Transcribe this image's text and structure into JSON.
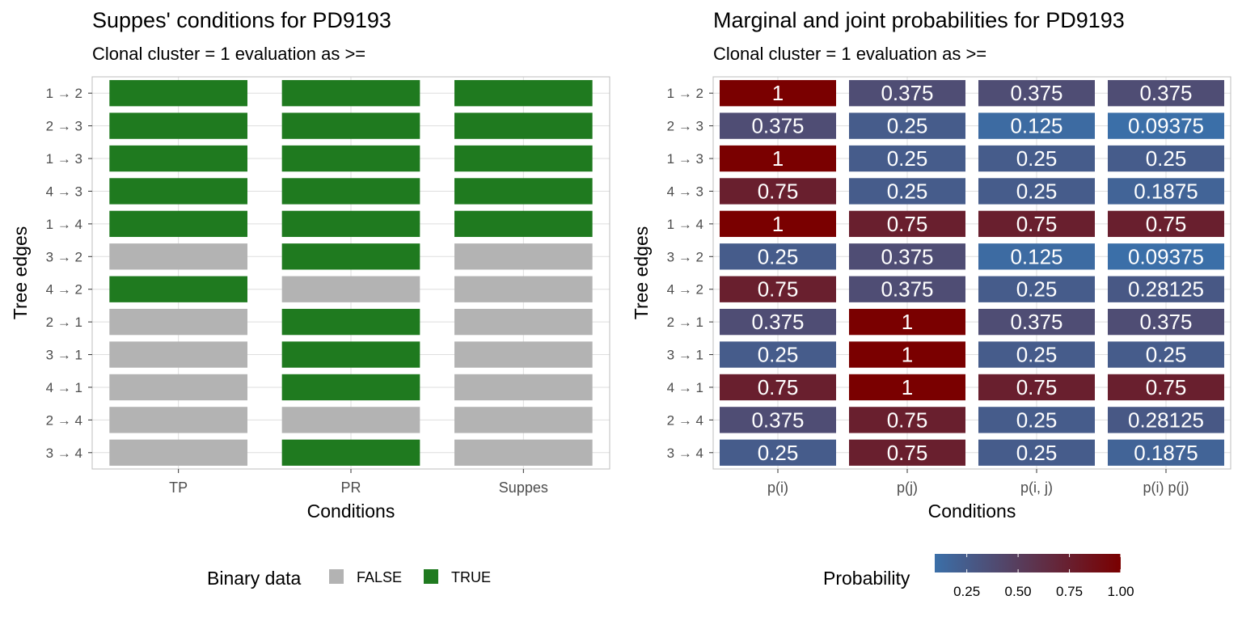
{
  "chart_data": [
    {
      "type": "heatmap",
      "title": "Suppes' conditions for PD9193",
      "subtitle": "Clonal cluster =  1 evaluation as >=",
      "xlabel": "Conditions",
      "ylabel": "Tree edges",
      "x_categories": [
        "TP",
        "PR",
        "Suppes"
      ],
      "y_categories": [
        "1 → 2",
        "2 → 3",
        "1 → 3",
        "4 → 3",
        "1 → 4",
        "3 → 2",
        "4 → 2",
        "2 → 1",
        "3 → 1",
        "4 → 1",
        "2 → 4",
        "3 → 4"
      ],
      "values": [
        [
          true,
          true,
          true
        ],
        [
          true,
          true,
          true
        ],
        [
          true,
          true,
          true
        ],
        [
          true,
          true,
          true
        ],
        [
          true,
          true,
          true
        ],
        [
          false,
          true,
          false
        ],
        [
          true,
          false,
          false
        ],
        [
          false,
          true,
          false
        ],
        [
          false,
          true,
          false
        ],
        [
          false,
          true,
          false
        ],
        [
          false,
          false,
          false
        ],
        [
          false,
          true,
          false
        ]
      ],
      "legend": {
        "title": "Binary data",
        "position": "bottom",
        "entries": [
          {
            "label": "FALSE",
            "color": "#b3b3b3"
          },
          {
            "label": "TRUE",
            "color": "#1f7a1f"
          }
        ]
      },
      "grid": true
    },
    {
      "type": "heatmap",
      "title": "Marginal and joint probabilities for PD9193",
      "subtitle": "Clonal cluster =  1 evaluation as >=",
      "xlabel": "Conditions",
      "ylabel": "Tree edges",
      "x_categories": [
        "p(i)",
        "p(j)",
        "p(i, j)",
        "p(i) p(j)"
      ],
      "y_categories": [
        "1 → 2",
        "2 → 3",
        "1 → 3",
        "4 → 3",
        "1 → 4",
        "3 → 2",
        "4 → 2",
        "2 → 1",
        "3 → 1",
        "4 → 1",
        "2 → 4",
        "3 → 4"
      ],
      "values": [
        [
          1,
          0.375,
          0.375,
          0.375
        ],
        [
          0.375,
          0.25,
          0.125,
          0.09375
        ],
        [
          1,
          0.25,
          0.25,
          0.25
        ],
        [
          0.75,
          0.25,
          0.25,
          0.1875
        ],
        [
          1,
          0.75,
          0.75,
          0.75
        ],
        [
          0.25,
          0.375,
          0.125,
          0.09375
        ],
        [
          0.75,
          0.375,
          0.25,
          0.28125
        ],
        [
          0.375,
          1,
          0.375,
          0.375
        ],
        [
          0.25,
          1,
          0.25,
          0.25
        ],
        [
          0.75,
          1,
          0.75,
          0.75
        ],
        [
          0.375,
          0.75,
          0.25,
          0.28125
        ],
        [
          0.25,
          0.75,
          0.25,
          0.1875
        ]
      ],
      "labels": [
        [
          "1",
          "0.375",
          "0.375",
          "0.375"
        ],
        [
          "0.375",
          "0.25",
          "0.125",
          "0.09375"
        ],
        [
          "1",
          "0.25",
          "0.25",
          "0.25"
        ],
        [
          "0.75",
          "0.25",
          "0.25",
          "0.1875"
        ],
        [
          "1",
          "0.75",
          "0.75",
          "0.75"
        ],
        [
          "0.25",
          "0.375",
          "0.125",
          "0.09375"
        ],
        [
          "0.75",
          "0.375",
          "0.25",
          "0.28125"
        ],
        [
          "0.375",
          "1",
          "0.375",
          "0.375"
        ],
        [
          "0.25",
          "1",
          "0.25",
          "0.25"
        ],
        [
          "0.75",
          "1",
          "0.75",
          "0.75"
        ],
        [
          "0.375",
          "0.75",
          "0.25",
          "0.28125"
        ],
        [
          "0.25",
          "0.75",
          "0.25",
          "0.1875"
        ]
      ],
      "color_scale": {
        "title": "Probability",
        "low_color": "#3b6fa8",
        "high_color": "#7a0000",
        "range": [
          0.09375,
          1
        ],
        "ticks": [
          0.25,
          0.5,
          0.75,
          1.0
        ],
        "tick_labels": [
          "0.25",
          "0.50",
          "0.75",
          "1.00"
        ],
        "position": "bottom"
      },
      "grid": true
    }
  ]
}
